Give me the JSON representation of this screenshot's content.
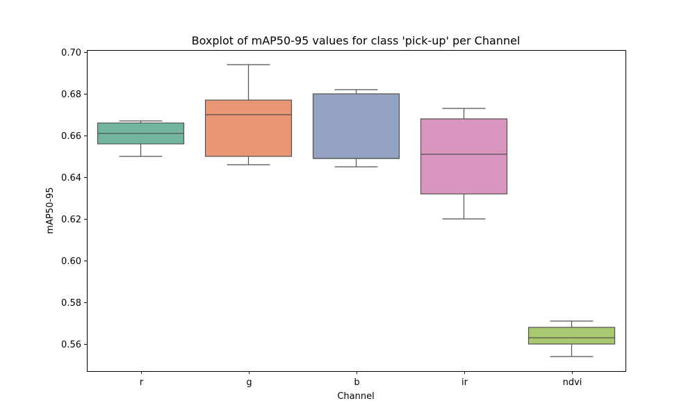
{
  "chart_data": {
    "type": "box",
    "title": "Boxplot of mAP50-95 values for class 'pick-up' per Channel",
    "xlabel": "Channel",
    "ylabel": "mAP50-95",
    "categories": [
      "r",
      "g",
      "b",
      "ir",
      "ndvi"
    ],
    "ylim": [
      0.547,
      0.701
    ],
    "yticks": [
      0.56,
      0.58,
      0.6,
      0.62,
      0.64,
      0.66,
      0.68,
      0.7
    ],
    "ytick_labels": [
      "0.56",
      "0.58",
      "0.60",
      "0.62",
      "0.64",
      "0.66",
      "0.68",
      "0.70"
    ],
    "grid": false,
    "edge_color": "#505050",
    "boxes": [
      {
        "category": "r",
        "min": 0.65,
        "q1": 0.656,
        "median": 0.661,
        "q3": 0.666,
        "max": 0.667,
        "color": "#72b6a1"
      },
      {
        "category": "g",
        "min": 0.646,
        "q1": 0.65,
        "median": 0.67,
        "q3": 0.677,
        "max": 0.694,
        "color": "#e99675"
      },
      {
        "category": "b",
        "min": 0.645,
        "q1": 0.649,
        "median": 0.649,
        "q3": 0.68,
        "max": 0.682,
        "color": "#95a3c3"
      },
      {
        "category": "ir",
        "min": 0.62,
        "q1": 0.632,
        "median": 0.651,
        "q3": 0.668,
        "max": 0.673,
        "color": "#db96c0"
      },
      {
        "category": "ndvi",
        "min": 0.554,
        "q1": 0.56,
        "median": 0.563,
        "q3": 0.568,
        "max": 0.571,
        "color": "#a9c971"
      }
    ]
  }
}
